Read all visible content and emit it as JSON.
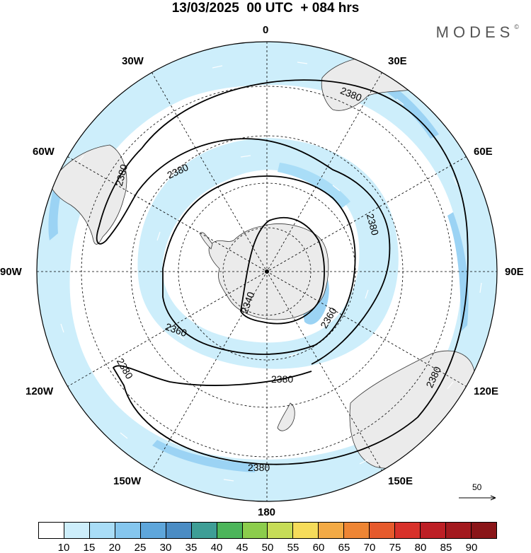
{
  "header": {
    "title": "13/03/2025  00 UTC  + 084 hrs",
    "brand": "MODES",
    "brand_mark": "©"
  },
  "map": {
    "projection": "south-polar-stereographic",
    "meridian_labels": {
      "m0": "0",
      "m30E": "30E",
      "m60E": "60E",
      "m90E": "90E",
      "m120E": "120E",
      "m150E": "150E",
      "m180": "180",
      "m150W": "150W",
      "m120W": "120W",
      "m90W": "90W",
      "m60W": "60W",
      "m30W": "30W"
    },
    "contour_labels": [
      "2380",
      "2380",
      "2380",
      "2380",
      "2380",
      "2380",
      "2360",
      "2360",
      "2340",
      "2380",
      "2380"
    ],
    "wind_scale_value": "50",
    "shading_colors": {
      "land": "#ebebeb",
      "shade_15": "#cdeefb",
      "shade_20": "#9bd3f4"
    }
  },
  "colorbar": {
    "labels": [
      "10",
      "15",
      "20",
      "25",
      "30",
      "35",
      "40",
      "45",
      "50",
      "55",
      "60",
      "65",
      "70",
      "75",
      "80",
      "85",
      "90"
    ],
    "colors": [
      "#ffffff",
      "#cdeefb",
      "#a9ddf7",
      "#85c6ee",
      "#5ea6db",
      "#4a8cc4",
      "#3e9e96",
      "#4cb55a",
      "#8ccd4c",
      "#c6dc57",
      "#f6dc5a",
      "#f3aa45",
      "#ee8534",
      "#e65a2c",
      "#d8312a",
      "#bd1f25",
      "#a3191e",
      "#8a1518"
    ]
  }
}
